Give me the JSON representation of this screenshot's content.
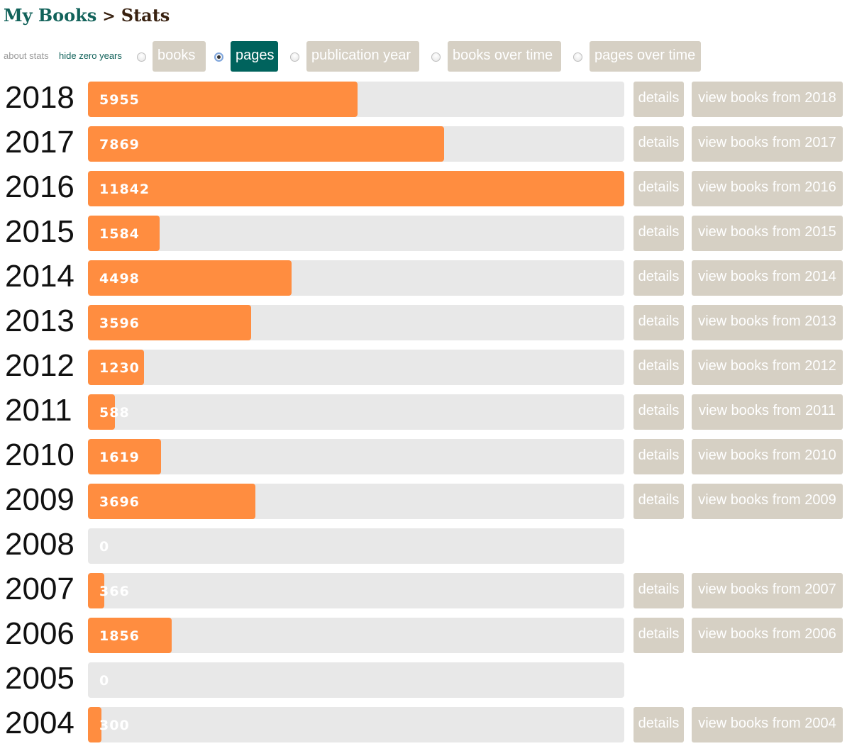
{
  "breadcrumb": {
    "parent": "My Books",
    "separator": ">",
    "current": "Stats"
  },
  "controls": {
    "about_label": "about stats",
    "hide_zero_label": "hide zero years",
    "options": [
      {
        "label": "books",
        "selected": false
      },
      {
        "label": "pages",
        "selected": true
      },
      {
        "label": "publication year",
        "selected": false
      },
      {
        "label": "books over time",
        "selected": false
      },
      {
        "label": "pages over time",
        "selected": false
      }
    ]
  },
  "chart_data": {
    "type": "bar",
    "orientation": "horizontal",
    "metric": "pages",
    "xlim": [
      0,
      11842
    ],
    "categories": [
      "2018",
      "2017",
      "2016",
      "2015",
      "2014",
      "2013",
      "2012",
      "2011",
      "2010",
      "2009",
      "2008",
      "2007",
      "2006",
      "2005",
      "2004"
    ],
    "values": [
      5955,
      7869,
      11842,
      1584,
      4498,
      3596,
      1230,
      588,
      1619,
      3696,
      0,
      366,
      1856,
      0,
      300
    ],
    "bar_color": "#ff8d40",
    "track_color": "#e8e8e8"
  },
  "row_actions": {
    "details_label": "details",
    "view_prefix": "view books from "
  },
  "colors": {
    "accent": "#00635d",
    "link": "#11625a",
    "button": "#d6d0c4"
  }
}
